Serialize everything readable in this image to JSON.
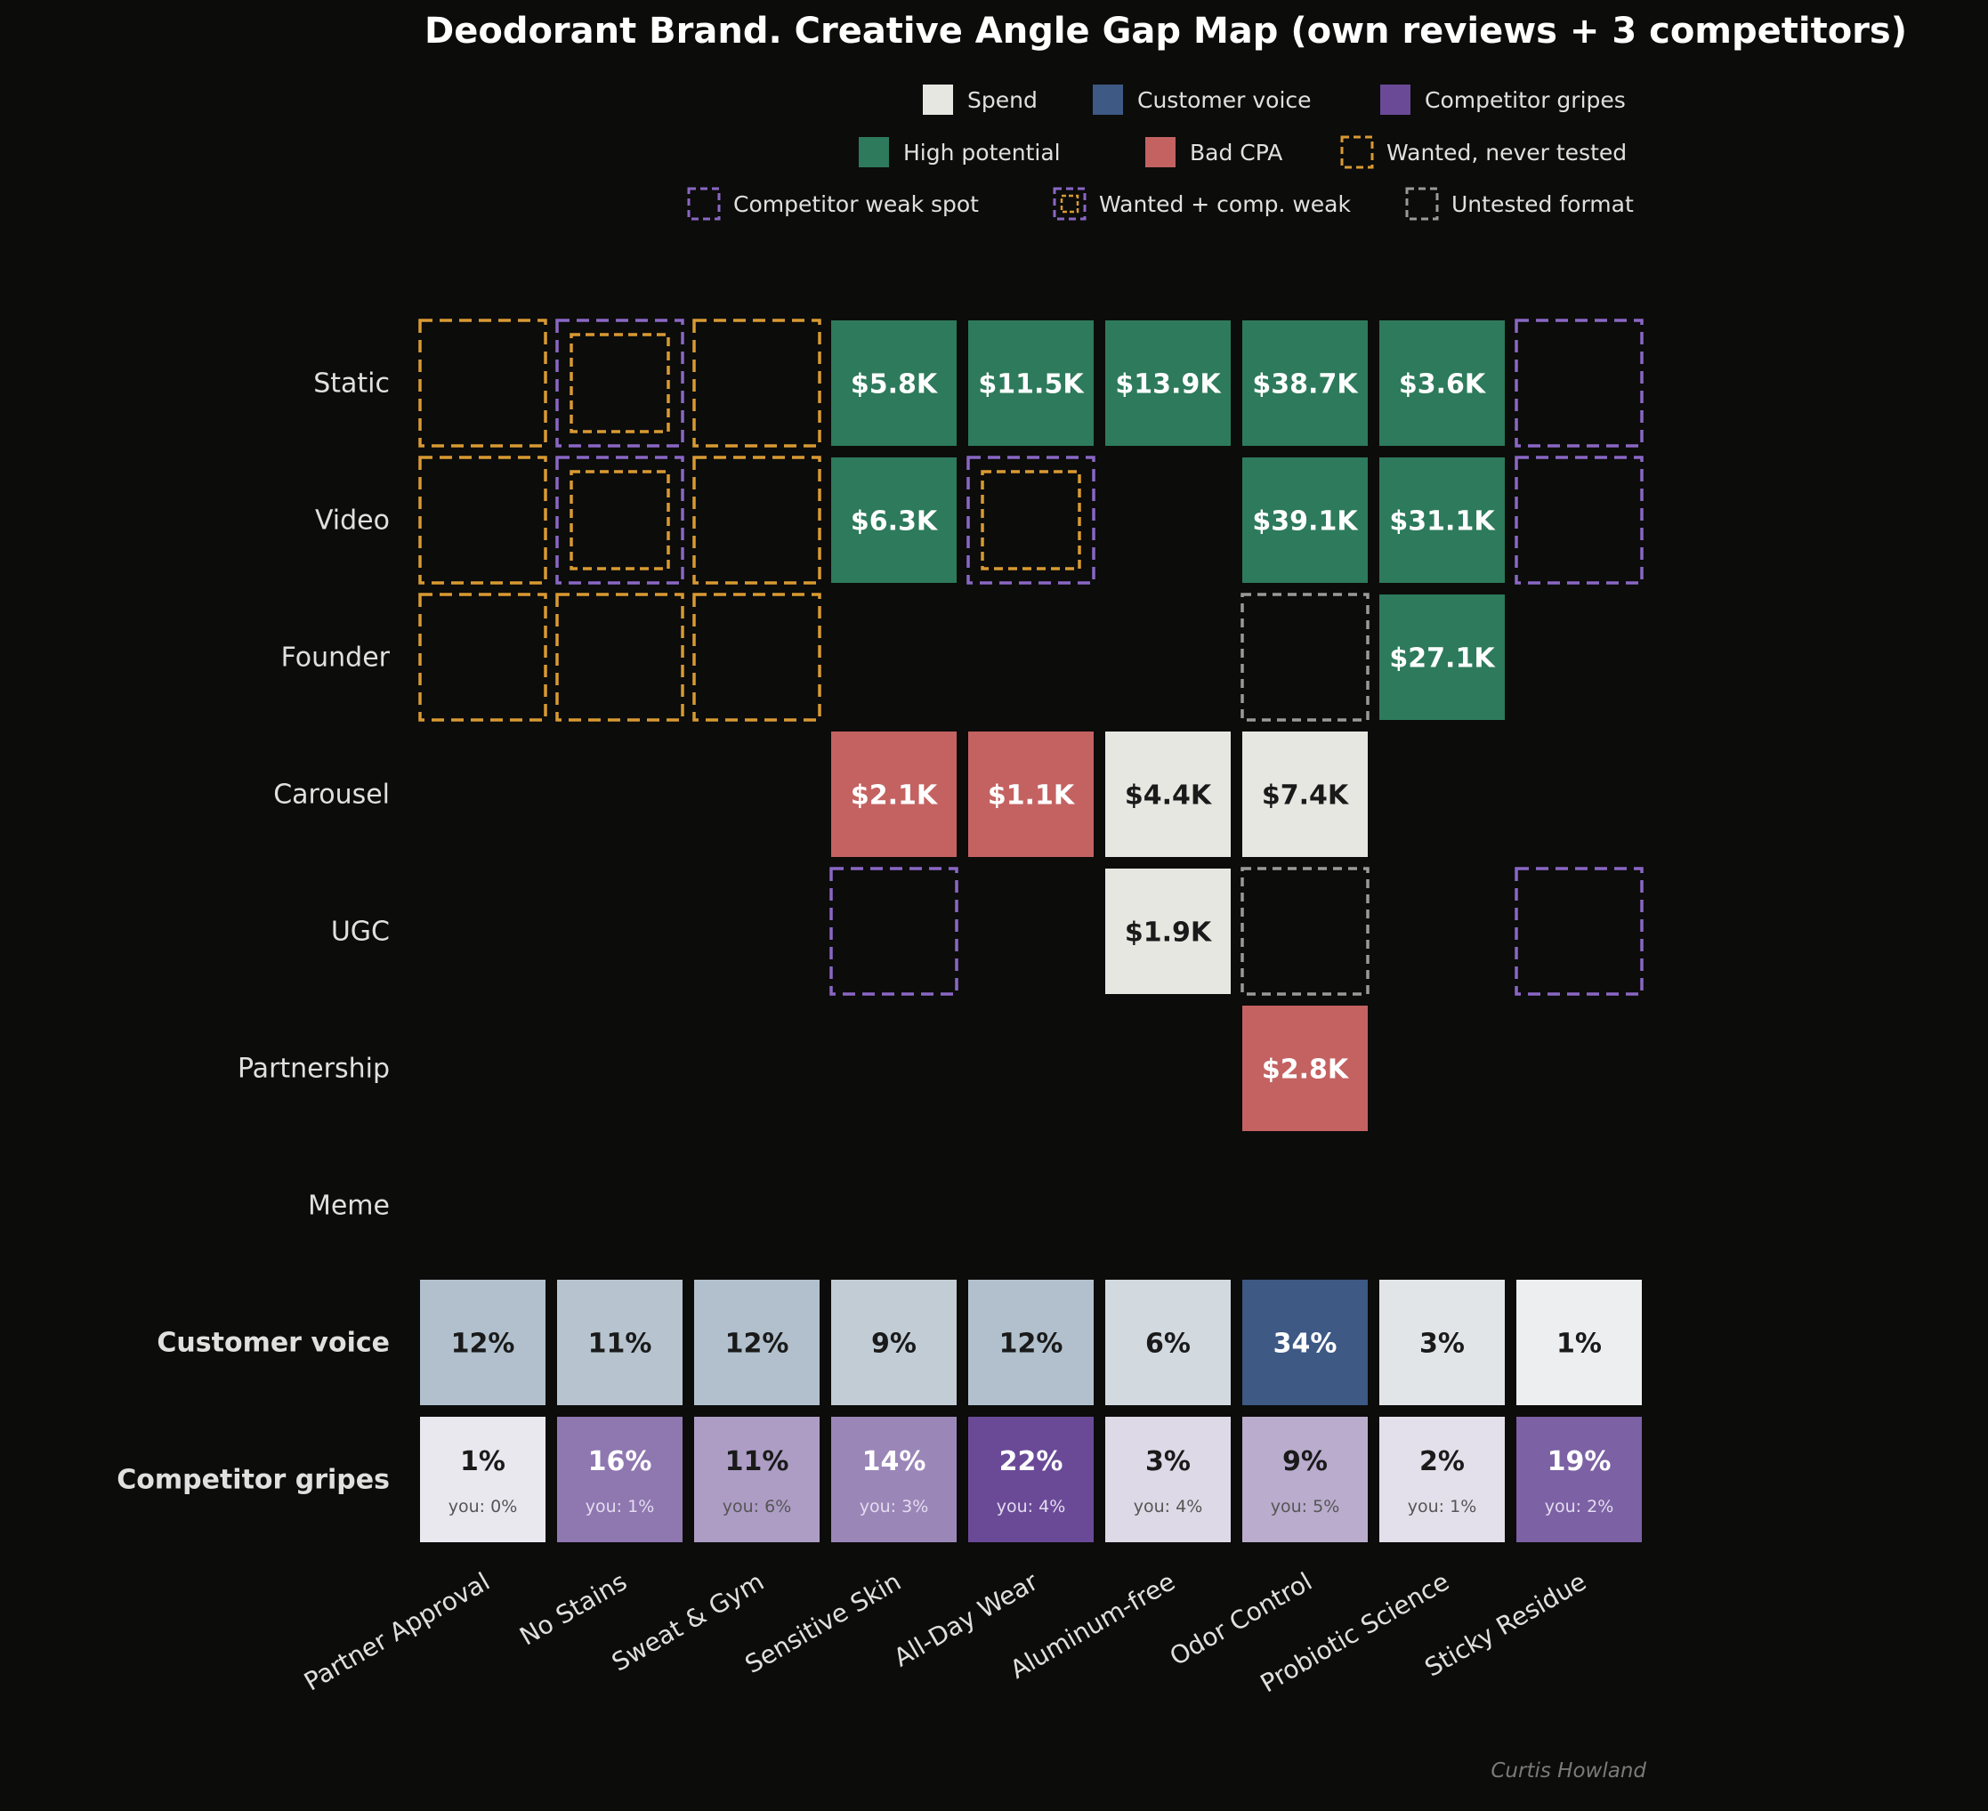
{
  "chart_data": {
    "type": "heatmap",
    "title": "Deodorant Brand. Creative Angle Gap Map (own reviews + 3 competitors)",
    "credit": "Curtis Howland",
    "legend": {
      "placement": "top-right",
      "items": [
        {
          "label": "Spend",
          "kind": "fill-light"
        },
        {
          "label": "Customer voice",
          "kind": "fill-blue"
        },
        {
          "label": "Competitor gripes",
          "kind": "fill-purple"
        },
        {
          "label": "High potential",
          "kind": "fill-green"
        },
        {
          "label": "Bad CPA",
          "kind": "fill-red"
        },
        {
          "label": "Wanted, never tested",
          "kind": "dash-gold"
        },
        {
          "label": "Competitor weak spot",
          "kind": "dash-purple"
        },
        {
          "label": "Wanted + comp. weak",
          "kind": "dash-both"
        },
        {
          "label": "Untested format",
          "kind": "dash-gray"
        }
      ]
    },
    "rows": [
      "Static",
      "Video",
      "Founder",
      "Carousel",
      "UGC",
      "Partnership",
      "Meme"
    ],
    "columns": [
      "Partner Approval",
      "No Stains",
      "Sweat & Gym",
      "Sensitive Skin",
      "All-Day Wear",
      "Aluminum-free",
      "Odor Control",
      "Probiotic Science",
      "Sticky Residue"
    ],
    "cells": [
      {
        "row": 0,
        "col": 0,
        "type": "wanted"
      },
      {
        "row": 0,
        "col": 1,
        "type": "both"
      },
      {
        "row": 0,
        "col": 2,
        "type": "wanted"
      },
      {
        "row": 0,
        "col": 3,
        "type": "high",
        "label": "$5.8K",
        "spend_k": 5.8
      },
      {
        "row": 0,
        "col": 4,
        "type": "high",
        "label": "$11.5K",
        "spend_k": 11.5
      },
      {
        "row": 0,
        "col": 5,
        "type": "high",
        "label": "$13.9K",
        "spend_k": 13.9
      },
      {
        "row": 0,
        "col": 6,
        "type": "high",
        "label": "$38.7K",
        "spend_k": 38.7
      },
      {
        "row": 0,
        "col": 7,
        "type": "high",
        "label": "$3.6K",
        "spend_k": 3.6
      },
      {
        "row": 0,
        "col": 8,
        "type": "weak"
      },
      {
        "row": 1,
        "col": 0,
        "type": "wanted"
      },
      {
        "row": 1,
        "col": 1,
        "type": "both"
      },
      {
        "row": 1,
        "col": 2,
        "type": "wanted"
      },
      {
        "row": 1,
        "col": 3,
        "type": "high",
        "label": "$6.3K",
        "spend_k": 6.3
      },
      {
        "row": 1,
        "col": 4,
        "type": "both"
      },
      {
        "row": 1,
        "col": 6,
        "type": "high",
        "label": "$39.1K",
        "spend_k": 39.1
      },
      {
        "row": 1,
        "col": 7,
        "type": "high",
        "label": "$31.1K",
        "spend_k": 31.1
      },
      {
        "row": 1,
        "col": 8,
        "type": "weak"
      },
      {
        "row": 2,
        "col": 0,
        "type": "wanted"
      },
      {
        "row": 2,
        "col": 1,
        "type": "wanted"
      },
      {
        "row": 2,
        "col": 2,
        "type": "wanted"
      },
      {
        "row": 2,
        "col": 6,
        "type": "untested"
      },
      {
        "row": 2,
        "col": 7,
        "type": "high",
        "label": "$27.1K",
        "spend_k": 27.1
      },
      {
        "row": 3,
        "col": 3,
        "type": "bad",
        "label": "$2.1K",
        "spend_k": 2.1
      },
      {
        "row": 3,
        "col": 4,
        "type": "bad",
        "label": "$1.1K",
        "spend_k": 1.1
      },
      {
        "row": 3,
        "col": 5,
        "type": "spend",
        "label": "$4.4K",
        "spend_k": 4.4
      },
      {
        "row": 3,
        "col": 6,
        "type": "spend",
        "label": "$7.4K",
        "spend_k": 7.4
      },
      {
        "row": 4,
        "col": 3,
        "type": "weak"
      },
      {
        "row": 4,
        "col": 5,
        "type": "spend",
        "label": "$1.9K",
        "spend_k": 1.9
      },
      {
        "row": 4,
        "col": 6,
        "type": "untested"
      },
      {
        "row": 4,
        "col": 8,
        "type": "weak"
      },
      {
        "row": 5,
        "col": 6,
        "type": "bad",
        "label": "$2.8K",
        "spend_k": 2.8
      }
    ],
    "customer_voice": {
      "label": "Customer voice",
      "values": [
        12,
        11,
        12,
        9,
        12,
        6,
        34,
        3,
        1
      ],
      "labels": [
        "12%",
        "11%",
        "12%",
        "9%",
        "12%",
        "6%",
        "34%",
        "3%",
        "1%"
      ]
    },
    "competitor_gripes": {
      "label": "Competitor gripes",
      "values": [
        1,
        16,
        11,
        14,
        22,
        3,
        9,
        2,
        19
      ],
      "labels": [
        "1%",
        "16%",
        "11%",
        "14%",
        "22%",
        "3%",
        "9%",
        "2%",
        "19%"
      ],
      "you_labels": [
        "you: 0%",
        "you: 1%",
        "you: 6%",
        "you: 3%",
        "you: 4%",
        "you: 4%",
        "you: 5%",
        "you: 1%",
        "you: 2%"
      ]
    },
    "colors": {
      "background": "#0c0c0b",
      "spend": "#e6e7e1",
      "high": "#2d7a5c",
      "bad": "#c46262",
      "wanted": "#d89a32",
      "weak": "#8a67c4",
      "untested": "#9a9a9a",
      "voice_max": "#3d5984",
      "gripe_max": "#6a4a97",
      "text_light": "#e0e0e0"
    }
  }
}
